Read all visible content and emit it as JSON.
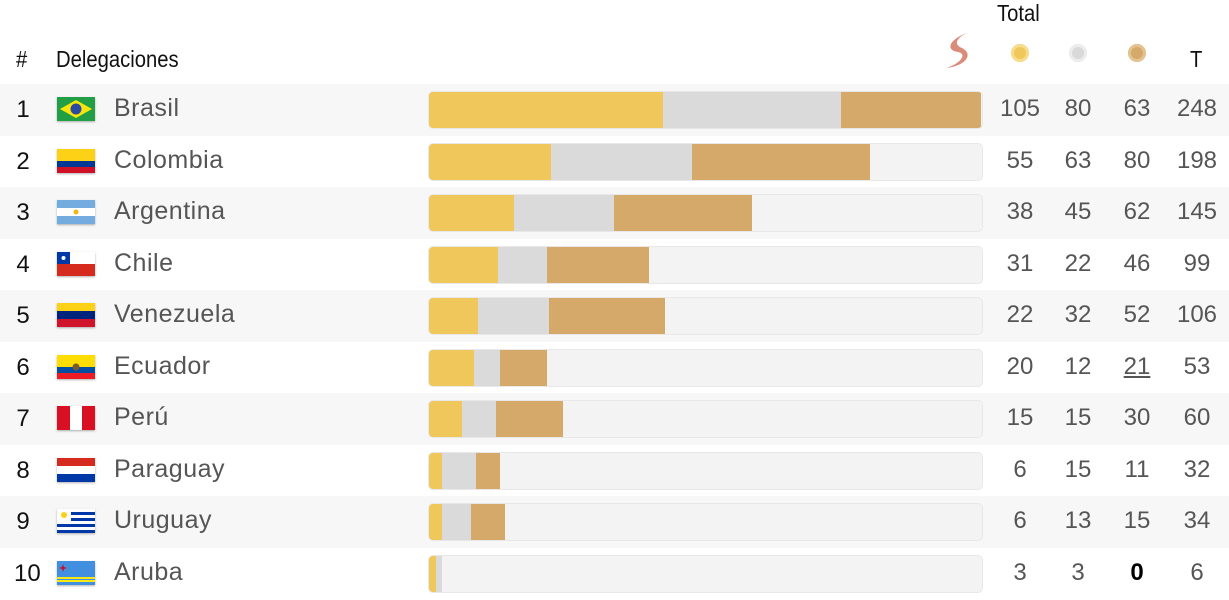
{
  "header": {
    "rank": "#",
    "name": "Delegaciones",
    "total": "Total",
    "total_short": "T"
  },
  "rows": [
    {
      "rank": 1,
      "name": "Brasil",
      "gold": 105,
      "silver": 80,
      "bronze": 63,
      "total": 248
    },
    {
      "rank": 2,
      "name": "Colombia",
      "gold": 55,
      "silver": 63,
      "bronze": 80,
      "total": 198
    },
    {
      "rank": 3,
      "name": "Argentina",
      "gold": 38,
      "silver": 45,
      "bronze": 62,
      "total": 145
    },
    {
      "rank": 4,
      "name": "Chile",
      "gold": 31,
      "silver": 22,
      "bronze": 46,
      "total": 99
    },
    {
      "rank": 5,
      "name": "Venezuela",
      "gold": 22,
      "silver": 32,
      "bronze": 52,
      "total": 106
    },
    {
      "rank": 6,
      "name": "Ecuador",
      "gold": 20,
      "silver": 12,
      "bronze": 21,
      "total": 53
    },
    {
      "rank": 7,
      "name": "Perú",
      "gold": 15,
      "silver": 15,
      "bronze": 30,
      "total": 60
    },
    {
      "rank": 8,
      "name": "Paraguay",
      "gold": 6,
      "silver": 15,
      "bronze": 11,
      "total": 32
    },
    {
      "rank": 9,
      "name": "Uruguay",
      "gold": 6,
      "silver": 13,
      "bronze": 15,
      "total": 34
    },
    {
      "rank": 10,
      "name": "Aruba",
      "gold": 3,
      "silver": 3,
      "bronze": 0,
      "total": 6
    }
  ]
}
